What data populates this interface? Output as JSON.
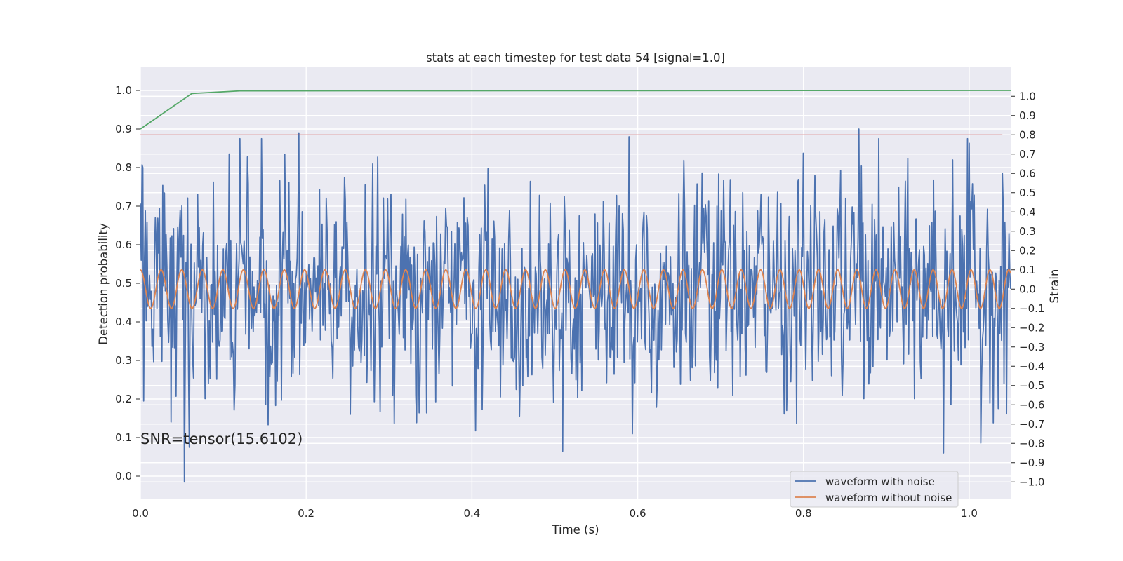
{
  "chart_data": {
    "type": "line",
    "title": "stats at each timestep for test data 54 [signal=1.0]",
    "xlabel": "Time (s)",
    "ylabel": "Detection probability",
    "y2label": "Strain",
    "xlim": [
      0.0,
      1.05
    ],
    "ylim": [
      -0.06,
      1.06
    ],
    "y2lim": [
      -1.09,
      1.15
    ],
    "xticks": [
      "0.0",
      "0.2",
      "0.4",
      "0.6",
      "0.8",
      "1.0"
    ],
    "xtick_values": [
      0.0,
      0.2,
      0.4,
      0.6,
      0.8,
      1.0
    ],
    "yticks": [
      "0.0",
      "0.1",
      "0.2",
      "0.3",
      "0.4",
      "0.5",
      "0.6",
      "0.7",
      "0.8",
      "0.9",
      "1.0"
    ],
    "ytick_values": [
      0.0,
      0.1,
      0.2,
      0.3,
      0.4,
      0.5,
      0.6,
      0.7,
      0.8,
      0.9,
      1.0
    ],
    "y2ticks": [
      "−1.0",
      "−0.9",
      "−0.8",
      "−0.7",
      "−0.6",
      "−0.5",
      "−0.4",
      "−0.3",
      "−0.2",
      "−0.1",
      "0.0",
      "0.1",
      "0.2",
      "0.3",
      "0.4",
      "0.5",
      "0.6",
      "0.7",
      "0.8",
      "0.9",
      "1.0"
    ],
    "y2tick_values": [
      -1.0,
      -0.9,
      -0.8,
      -0.7,
      -0.6,
      -0.5,
      -0.4,
      -0.3,
      -0.2,
      -0.1,
      0.0,
      0.1,
      0.2,
      0.3,
      0.4,
      0.5,
      0.6,
      0.7,
      0.8,
      0.9,
      1.0
    ],
    "grid": true,
    "background": "#eaeaf2",
    "annotation": "SNR=tensor(15.6102)",
    "legend_position": "lower-right",
    "threshold_line": {
      "axis": "right",
      "value": 0.8,
      "color": "#c44e52"
    },
    "detection_probability": {
      "axis": "left",
      "color": "#55a868",
      "x": [
        0.0,
        0.062,
        0.12,
        1.05
      ],
      "y": [
        0.9,
        0.992,
        0.999,
        1.0
      ]
    },
    "series": [
      {
        "name": "waveform with noise",
        "axis": "right",
        "color": "#4c72b0",
        "n_points": 1050,
        "seed": 54,
        "noise_std": 0.28,
        "signal_amplitude": 0.1,
        "key_points": [
          {
            "x": 0.003,
            "y": 0.63
          },
          {
            "x": 0.004,
            "y": -0.58
          },
          {
            "x": 0.053,
            "y": -1.0
          },
          {
            "x": 0.191,
            "y": 0.81
          },
          {
            "x": 0.59,
            "y": 0.79
          },
          {
            "x": 0.594,
            "y": -0.75
          },
          {
            "x": 0.867,
            "y": 0.83
          },
          {
            "x": 0.969,
            "y": -0.85
          },
          {
            "x": 0.98,
            "y": 0.67
          },
          {
            "x": 1.04,
            "y": 0.6
          },
          {
            "x": 1.042,
            "y": -0.49
          }
        ]
      },
      {
        "name": "waveform without noise",
        "axis": "right",
        "color": "#dd8452",
        "amplitude": 0.1,
        "f0": 40,
        "f1": 44
      }
    ]
  },
  "legend": {
    "items": [
      {
        "label": "waveform with noise",
        "color": "#4c72b0"
      },
      {
        "label": "waveform without noise",
        "color": "#dd8452"
      }
    ]
  }
}
